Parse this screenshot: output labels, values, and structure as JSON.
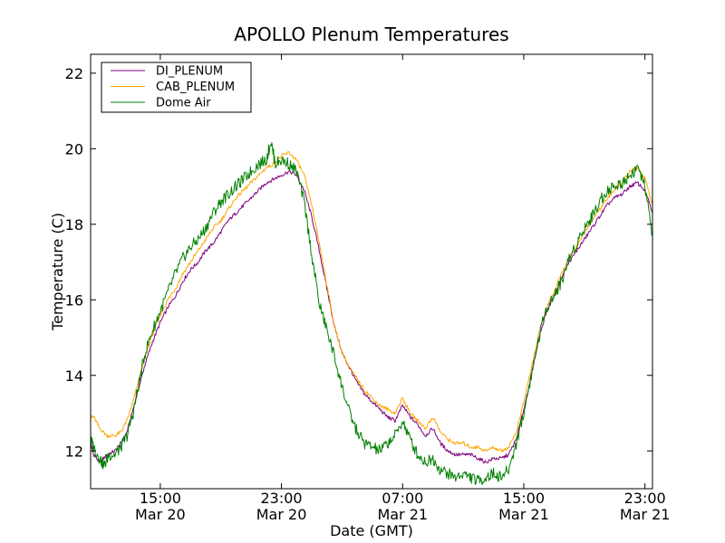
{
  "chart_data": {
    "type": "line",
    "title": "APOLLO Plenum Temperatures",
    "xlabel": "Date (GMT)",
    "ylabel": "Temperature (C)",
    "x_unit": "hours since Mar 20 00:00 GMT",
    "xlim": [
      10.4,
      47.5
    ],
    "ylim": [
      11.0,
      22.5
    ],
    "x_ticks": [
      {
        "value": 15,
        "time": "15:00",
        "date": "Mar 20"
      },
      {
        "value": 23,
        "time": "23:00",
        "date": "Mar 20"
      },
      {
        "value": 31,
        "time": "07:00",
        "date": "Mar 21"
      },
      {
        "value": 39,
        "time": "15:00",
        "date": "Mar 21"
      },
      {
        "value": 47,
        "time": "23:00",
        "date": "Mar 21"
      }
    ],
    "y_ticks": [
      12,
      14,
      16,
      18,
      20,
      22
    ],
    "y_tick_labels": [
      "12",
      "14",
      "16",
      "18",
      "20",
      "22"
    ],
    "legend_position": "upper-left",
    "series": [
      {
        "name": "DI_PLENUM",
        "color": "#800080",
        "points": [
          [
            10.4,
            12.2
          ],
          [
            10.6,
            11.9
          ],
          [
            11.0,
            11.7
          ],
          [
            11.5,
            11.9
          ],
          [
            12.0,
            12.0
          ],
          [
            12.4,
            12.2
          ],
          [
            12.8,
            12.5
          ],
          [
            13.2,
            13.1
          ],
          [
            13.6,
            13.7
          ],
          [
            14.0,
            14.3
          ],
          [
            14.5,
            14.9
          ],
          [
            15.0,
            15.4
          ],
          [
            15.5,
            15.8
          ],
          [
            16.0,
            16.1
          ],
          [
            16.5,
            16.5
          ],
          [
            17.0,
            16.8
          ],
          [
            17.5,
            17.0
          ],
          [
            18.0,
            17.3
          ],
          [
            18.5,
            17.5
          ],
          [
            19.0,
            17.8
          ],
          [
            19.5,
            18.1
          ],
          [
            20.0,
            18.3
          ],
          [
            20.5,
            18.5
          ],
          [
            21.0,
            18.7
          ],
          [
            21.5,
            18.9
          ],
          [
            22.0,
            19.1
          ],
          [
            22.5,
            19.2
          ],
          [
            23.0,
            19.3
          ],
          [
            23.5,
            19.4
          ],
          [
            24.0,
            19.3
          ],
          [
            24.5,
            18.9
          ],
          [
            25.0,
            18.2
          ],
          [
            25.5,
            17.3
          ],
          [
            26.0,
            16.3
          ],
          [
            26.5,
            15.3
          ],
          [
            27.0,
            14.6
          ],
          [
            27.5,
            14.2
          ],
          [
            28.0,
            13.8
          ],
          [
            28.5,
            13.5
          ],
          [
            29.0,
            13.3
          ],
          [
            29.5,
            13.1
          ],
          [
            30.0,
            12.9
          ],
          [
            30.5,
            12.8
          ],
          [
            31.0,
            13.2
          ],
          [
            31.5,
            12.9
          ],
          [
            32.0,
            12.7
          ],
          [
            32.5,
            12.4
          ],
          [
            33.0,
            12.6
          ],
          [
            33.5,
            12.2
          ],
          [
            34.0,
            12.0
          ],
          [
            34.5,
            11.9
          ],
          [
            35.0,
            11.9
          ],
          [
            35.5,
            11.9
          ],
          [
            36.0,
            11.8
          ],
          [
            36.5,
            11.7
          ],
          [
            37.0,
            11.8
          ],
          [
            37.5,
            11.8
          ],
          [
            38.0,
            11.9
          ],
          [
            38.5,
            12.3
          ],
          [
            39.0,
            13.1
          ],
          [
            39.5,
            14.0
          ],
          [
            40.0,
            15.0
          ],
          [
            40.5,
            15.7
          ],
          [
            41.0,
            16.1
          ],
          [
            41.5,
            16.6
          ],
          [
            42.0,
            17.0
          ],
          [
            42.5,
            17.3
          ],
          [
            43.0,
            17.6
          ],
          [
            43.5,
            17.9
          ],
          [
            44.0,
            18.2
          ],
          [
            44.5,
            18.5
          ],
          [
            45.0,
            18.7
          ],
          [
            45.5,
            18.8
          ],
          [
            46.0,
            19.0
          ],
          [
            46.5,
            19.1
          ],
          [
            47.0,
            18.9
          ],
          [
            47.5,
            18.3
          ]
        ]
      },
      {
        "name": "CAB_PLENUM",
        "color": "#ffa500",
        "points": [
          [
            10.4,
            12.9
          ],
          [
            10.6,
            12.9
          ],
          [
            11.0,
            12.6
          ],
          [
            11.5,
            12.4
          ],
          [
            12.0,
            12.4
          ],
          [
            12.4,
            12.5
          ],
          [
            12.8,
            12.8
          ],
          [
            13.2,
            13.3
          ],
          [
            13.6,
            13.9
          ],
          [
            14.0,
            14.5
          ],
          [
            14.5,
            15.1
          ],
          [
            15.0,
            15.6
          ],
          [
            15.5,
            16.0
          ],
          [
            16.0,
            16.3
          ],
          [
            16.5,
            16.7
          ],
          [
            17.0,
            17.0
          ],
          [
            17.5,
            17.3
          ],
          [
            18.0,
            17.6
          ],
          [
            18.5,
            17.9
          ],
          [
            19.0,
            18.1
          ],
          [
            19.5,
            18.4
          ],
          [
            20.0,
            18.7
          ],
          [
            20.5,
            18.9
          ],
          [
            21.0,
            19.1
          ],
          [
            21.5,
            19.3
          ],
          [
            22.0,
            19.5
          ],
          [
            22.5,
            19.6
          ],
          [
            23.0,
            19.8
          ],
          [
            23.5,
            19.9
          ],
          [
            24.0,
            19.7
          ],
          [
            24.5,
            19.3
          ],
          [
            25.0,
            18.5
          ],
          [
            25.5,
            17.5
          ],
          [
            26.0,
            16.4
          ],
          [
            26.5,
            15.3
          ],
          [
            27.0,
            14.6
          ],
          [
            27.5,
            14.2
          ],
          [
            28.0,
            13.9
          ],
          [
            28.5,
            13.6
          ],
          [
            29.0,
            13.4
          ],
          [
            29.5,
            13.2
          ],
          [
            30.0,
            13.1
          ],
          [
            30.5,
            13.0
          ],
          [
            31.0,
            13.4
          ],
          [
            31.5,
            13.0
          ],
          [
            32.0,
            12.8
          ],
          [
            32.5,
            12.6
          ],
          [
            33.0,
            12.9
          ],
          [
            33.5,
            12.5
          ],
          [
            34.0,
            12.3
          ],
          [
            34.5,
            12.2
          ],
          [
            35.0,
            12.2
          ],
          [
            35.5,
            12.1
          ],
          [
            36.0,
            12.1
          ],
          [
            36.5,
            12.0
          ],
          [
            37.0,
            12.1
          ],
          [
            37.5,
            12.0
          ],
          [
            38.0,
            12.1
          ],
          [
            38.5,
            12.5
          ],
          [
            39.0,
            13.3
          ],
          [
            39.5,
            14.2
          ],
          [
            40.0,
            15.1
          ],
          [
            40.5,
            15.8
          ],
          [
            41.0,
            16.2
          ],
          [
            41.5,
            16.7
          ],
          [
            42.0,
            17.1
          ],
          [
            42.5,
            17.4
          ],
          [
            43.0,
            17.8
          ],
          [
            43.5,
            18.1
          ],
          [
            44.0,
            18.4
          ],
          [
            44.5,
            18.7
          ],
          [
            45.0,
            18.9
          ],
          [
            45.5,
            19.1
          ],
          [
            46.0,
            19.4
          ],
          [
            46.5,
            19.5
          ],
          [
            47.0,
            19.2
          ],
          [
            47.5,
            18.5
          ]
        ]
      },
      {
        "name": "Dome Air",
        "color": "#008000",
        "points": [
          [
            10.4,
            12.3
          ],
          [
            10.6,
            12.1
          ],
          [
            11.0,
            11.8
          ],
          [
            11.3,
            11.6
          ],
          [
            11.6,
            11.9
          ],
          [
            12.0,
            11.9
          ],
          [
            12.4,
            12.1
          ],
          [
            12.8,
            12.4
          ],
          [
            13.2,
            13.0
          ],
          [
            13.6,
            13.8
          ],
          [
            14.0,
            14.6
          ],
          [
            14.5,
            15.2
          ],
          [
            15.0,
            15.7
          ],
          [
            15.5,
            16.2
          ],
          [
            16.0,
            16.7
          ],
          [
            16.5,
            17.1
          ],
          [
            17.0,
            17.4
          ],
          [
            17.5,
            17.6
          ],
          [
            18.0,
            17.9
          ],
          [
            18.5,
            18.3
          ],
          [
            19.0,
            18.6
          ],
          [
            19.5,
            18.8
          ],
          [
            20.0,
            19.0
          ],
          [
            20.5,
            19.2
          ],
          [
            21.0,
            19.4
          ],
          [
            21.5,
            19.6
          ],
          [
            22.0,
            19.7
          ],
          [
            22.3,
            20.2
          ],
          [
            22.6,
            19.6
          ],
          [
            23.0,
            19.7
          ],
          [
            23.5,
            19.6
          ],
          [
            24.0,
            19.4
          ],
          [
            24.5,
            18.6
          ],
          [
            25.0,
            17.2
          ],
          [
            25.5,
            15.9
          ],
          [
            26.0,
            15.2
          ],
          [
            26.5,
            14.5
          ],
          [
            27.0,
            13.7
          ],
          [
            27.5,
            13.0
          ],
          [
            28.0,
            12.5
          ],
          [
            28.5,
            12.2
          ],
          [
            29.0,
            12.1
          ],
          [
            29.5,
            12.0
          ],
          [
            30.0,
            12.2
          ],
          [
            30.5,
            12.4
          ],
          [
            31.0,
            12.8
          ],
          [
            31.5,
            12.3
          ],
          [
            32.0,
            11.9
          ],
          [
            32.5,
            11.7
          ],
          [
            33.0,
            11.8
          ],
          [
            33.5,
            11.5
          ],
          [
            34.0,
            11.4
          ],
          [
            34.5,
            11.3
          ],
          [
            35.0,
            11.4
          ],
          [
            35.5,
            11.3
          ],
          [
            36.0,
            11.2
          ],
          [
            36.5,
            11.3
          ],
          [
            37.0,
            11.4
          ],
          [
            37.5,
            11.3
          ],
          [
            38.0,
            11.5
          ],
          [
            38.5,
            12.2
          ],
          [
            39.0,
            13.0
          ],
          [
            39.5,
            14.0
          ],
          [
            40.0,
            15.0
          ],
          [
            40.5,
            15.8
          ],
          [
            41.0,
            16.1
          ],
          [
            41.5,
            16.5
          ],
          [
            42.0,
            17.1
          ],
          [
            42.5,
            17.5
          ],
          [
            43.0,
            17.9
          ],
          [
            43.5,
            18.2
          ],
          [
            44.0,
            18.6
          ],
          [
            44.5,
            18.9
          ],
          [
            45.0,
            19.0
          ],
          [
            45.5,
            19.1
          ],
          [
            46.0,
            19.3
          ],
          [
            46.5,
            19.5
          ],
          [
            47.0,
            19.0
          ],
          [
            47.5,
            17.7
          ]
        ]
      }
    ]
  }
}
